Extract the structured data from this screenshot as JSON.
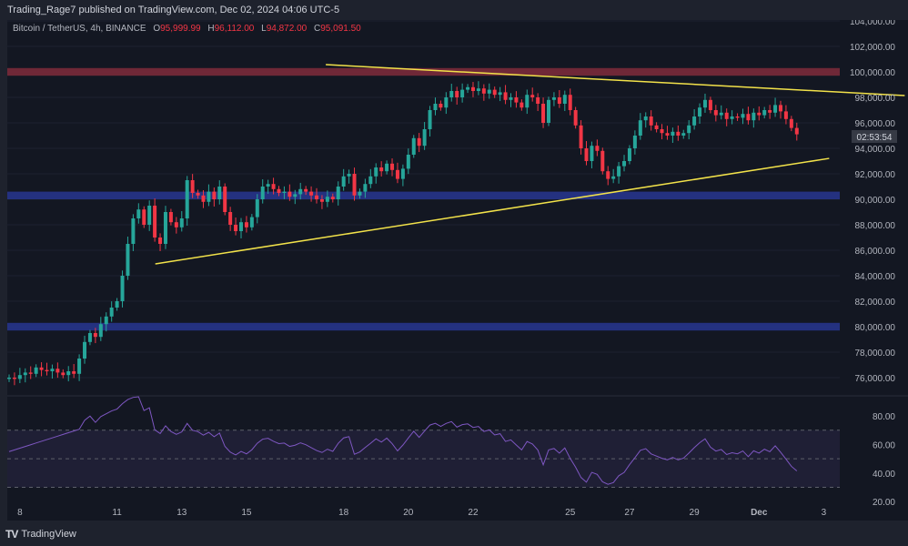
{
  "publisher": "Trading_Rage7 published on TradingView.com, Dec 02, 2024 04:06 UTC-5",
  "legend": {
    "symbol": "Bitcoin / TetherUS, 4h, BINANCE",
    "o_label": "O",
    "o": "95,999.99",
    "h_label": "H",
    "h": "96,112.00",
    "l_label": "L",
    "l": "94,872.00",
    "c_label": "C",
    "c": "95,091.50"
  },
  "countdown": "02:53:54",
  "footer": "TradingView",
  "colors": {
    "up": "#26a69a",
    "down": "#f23645",
    "trend": "#f2e24a",
    "resistance": "#7a2a3a",
    "support": "#27348b",
    "rsi": "#7e57c2"
  },
  "chart_data": {
    "type": "candlestick",
    "ylim": [
      75000,
      104500
    ],
    "yticks": [
      "104,000.00",
      "102,000.00",
      "100,000.00",
      "98,000.00",
      "96,000.00",
      "94,000.00",
      "92,000.00",
      "90,000.00",
      "88,000.00",
      "86,000.00",
      "84,000.00",
      "82,000.00",
      "80,000.00",
      "78,000.00",
      "76,000.00"
    ],
    "ytick_values": [
      104000,
      102000,
      100000,
      98000,
      96000,
      94000,
      92000,
      90000,
      88000,
      86000,
      84000,
      82000,
      80000,
      78000,
      76000
    ],
    "xticks": [
      {
        "label": "8",
        "bar": 2
      },
      {
        "label": "11",
        "bar": 20
      },
      {
        "label": "13",
        "bar": 32
      },
      {
        "label": "15",
        "bar": 44
      },
      {
        "label": "18",
        "bar": 62
      },
      {
        "label": "20",
        "bar": 74
      },
      {
        "label": "22",
        "bar": 86
      },
      {
        "label": "25",
        "bar": 104
      },
      {
        "label": "27",
        "bar": 115
      },
      {
        "label": "29",
        "bar": 127
      },
      {
        "label": "Dec",
        "bar": 139
      },
      {
        "label": "3",
        "bar": 151
      }
    ],
    "closes_k": [
      76.0,
      75.9,
      76.2,
      76.4,
      76.3,
      76.8,
      76.6,
      76.5,
      76.7,
      76.4,
      76.2,
      76.5,
      76.3,
      77.5,
      78.8,
      79.5,
      79.2,
      80.2,
      80.8,
      81.5,
      82.0,
      84.0,
      86.5,
      88.5,
      89.2,
      88.0,
      89.5,
      87.0,
      86.5,
      89.0,
      88.2,
      87.8,
      88.5,
      91.5,
      90.5,
      90.3,
      89.8,
      90.6,
      90.0,
      91.0,
      89.0,
      88.0,
      87.5,
      88.2,
      87.8,
      88.6,
      90.0,
      91.0,
      91.2,
      90.8,
      90.5,
      90.6,
      90.2,
      90.4,
      90.8,
      90.6,
      90.3,
      90.0,
      89.8,
      90.2,
      90.0,
      91.0,
      91.8,
      92.0,
      90.3,
      90.6,
      91.2,
      91.8,
      92.5,
      92.2,
      92.8,
      92.3,
      91.6,
      92.4,
      93.5,
      94.8,
      94.2,
      95.5,
      97.0,
      97.5,
      97.2,
      98.0,
      98.5,
      98.0,
      98.6,
      98.8,
      98.5,
      98.7,
      98.3,
      98.6,
      98.2,
      98.4,
      97.8,
      98.0,
      97.6,
      97.2,
      98.2,
      98.0,
      97.5,
      96.0,
      97.8,
      98.0,
      97.5,
      98.2,
      97.0,
      95.8,
      94.0,
      93.0,
      94.2,
      93.8,
      92.2,
      91.6,
      91.8,
      92.6,
      93.0,
      94.0,
      95.0,
      96.2,
      96.5,
      95.8,
      95.5,
      95.2,
      95.0,
      95.3,
      95.0,
      95.2,
      95.8,
      96.5,
      97.2,
      97.8,
      97.0,
      96.6,
      96.8,
      96.3,
      96.5,
      96.4,
      96.7,
      96.2,
      96.8,
      96.6,
      97.0,
      96.8,
      97.4,
      96.9,
      96.3,
      95.6,
      95.1
    ],
    "zones": [
      {
        "name": "resistance",
        "from": 99700,
        "to": 100300
      },
      {
        "name": "support-90k",
        "from": 90000,
        "to": 90600
      },
      {
        "name": "support-80k",
        "from": 79700,
        "to": 80300
      }
    ],
    "trendlines": [
      {
        "name": "upper",
        "from": {
          "bar": 58.7,
          "price": 100570
        },
        "to": {
          "bar": 166,
          "price": 98140
        }
      },
      {
        "name": "lower",
        "from": {
          "bar": 27.1,
          "price": 84930
        },
        "to": {
          "bar": 152,
          "price": 93210
        }
      }
    ],
    "rsi": {
      "period": 14,
      "yticks": [
        "80.00",
        "60.00",
        "40.00",
        "20.00"
      ],
      "ytick_values": [
        80,
        60,
        40,
        20
      ],
      "band": [
        30,
        70
      ],
      "mid": 50
    }
  }
}
